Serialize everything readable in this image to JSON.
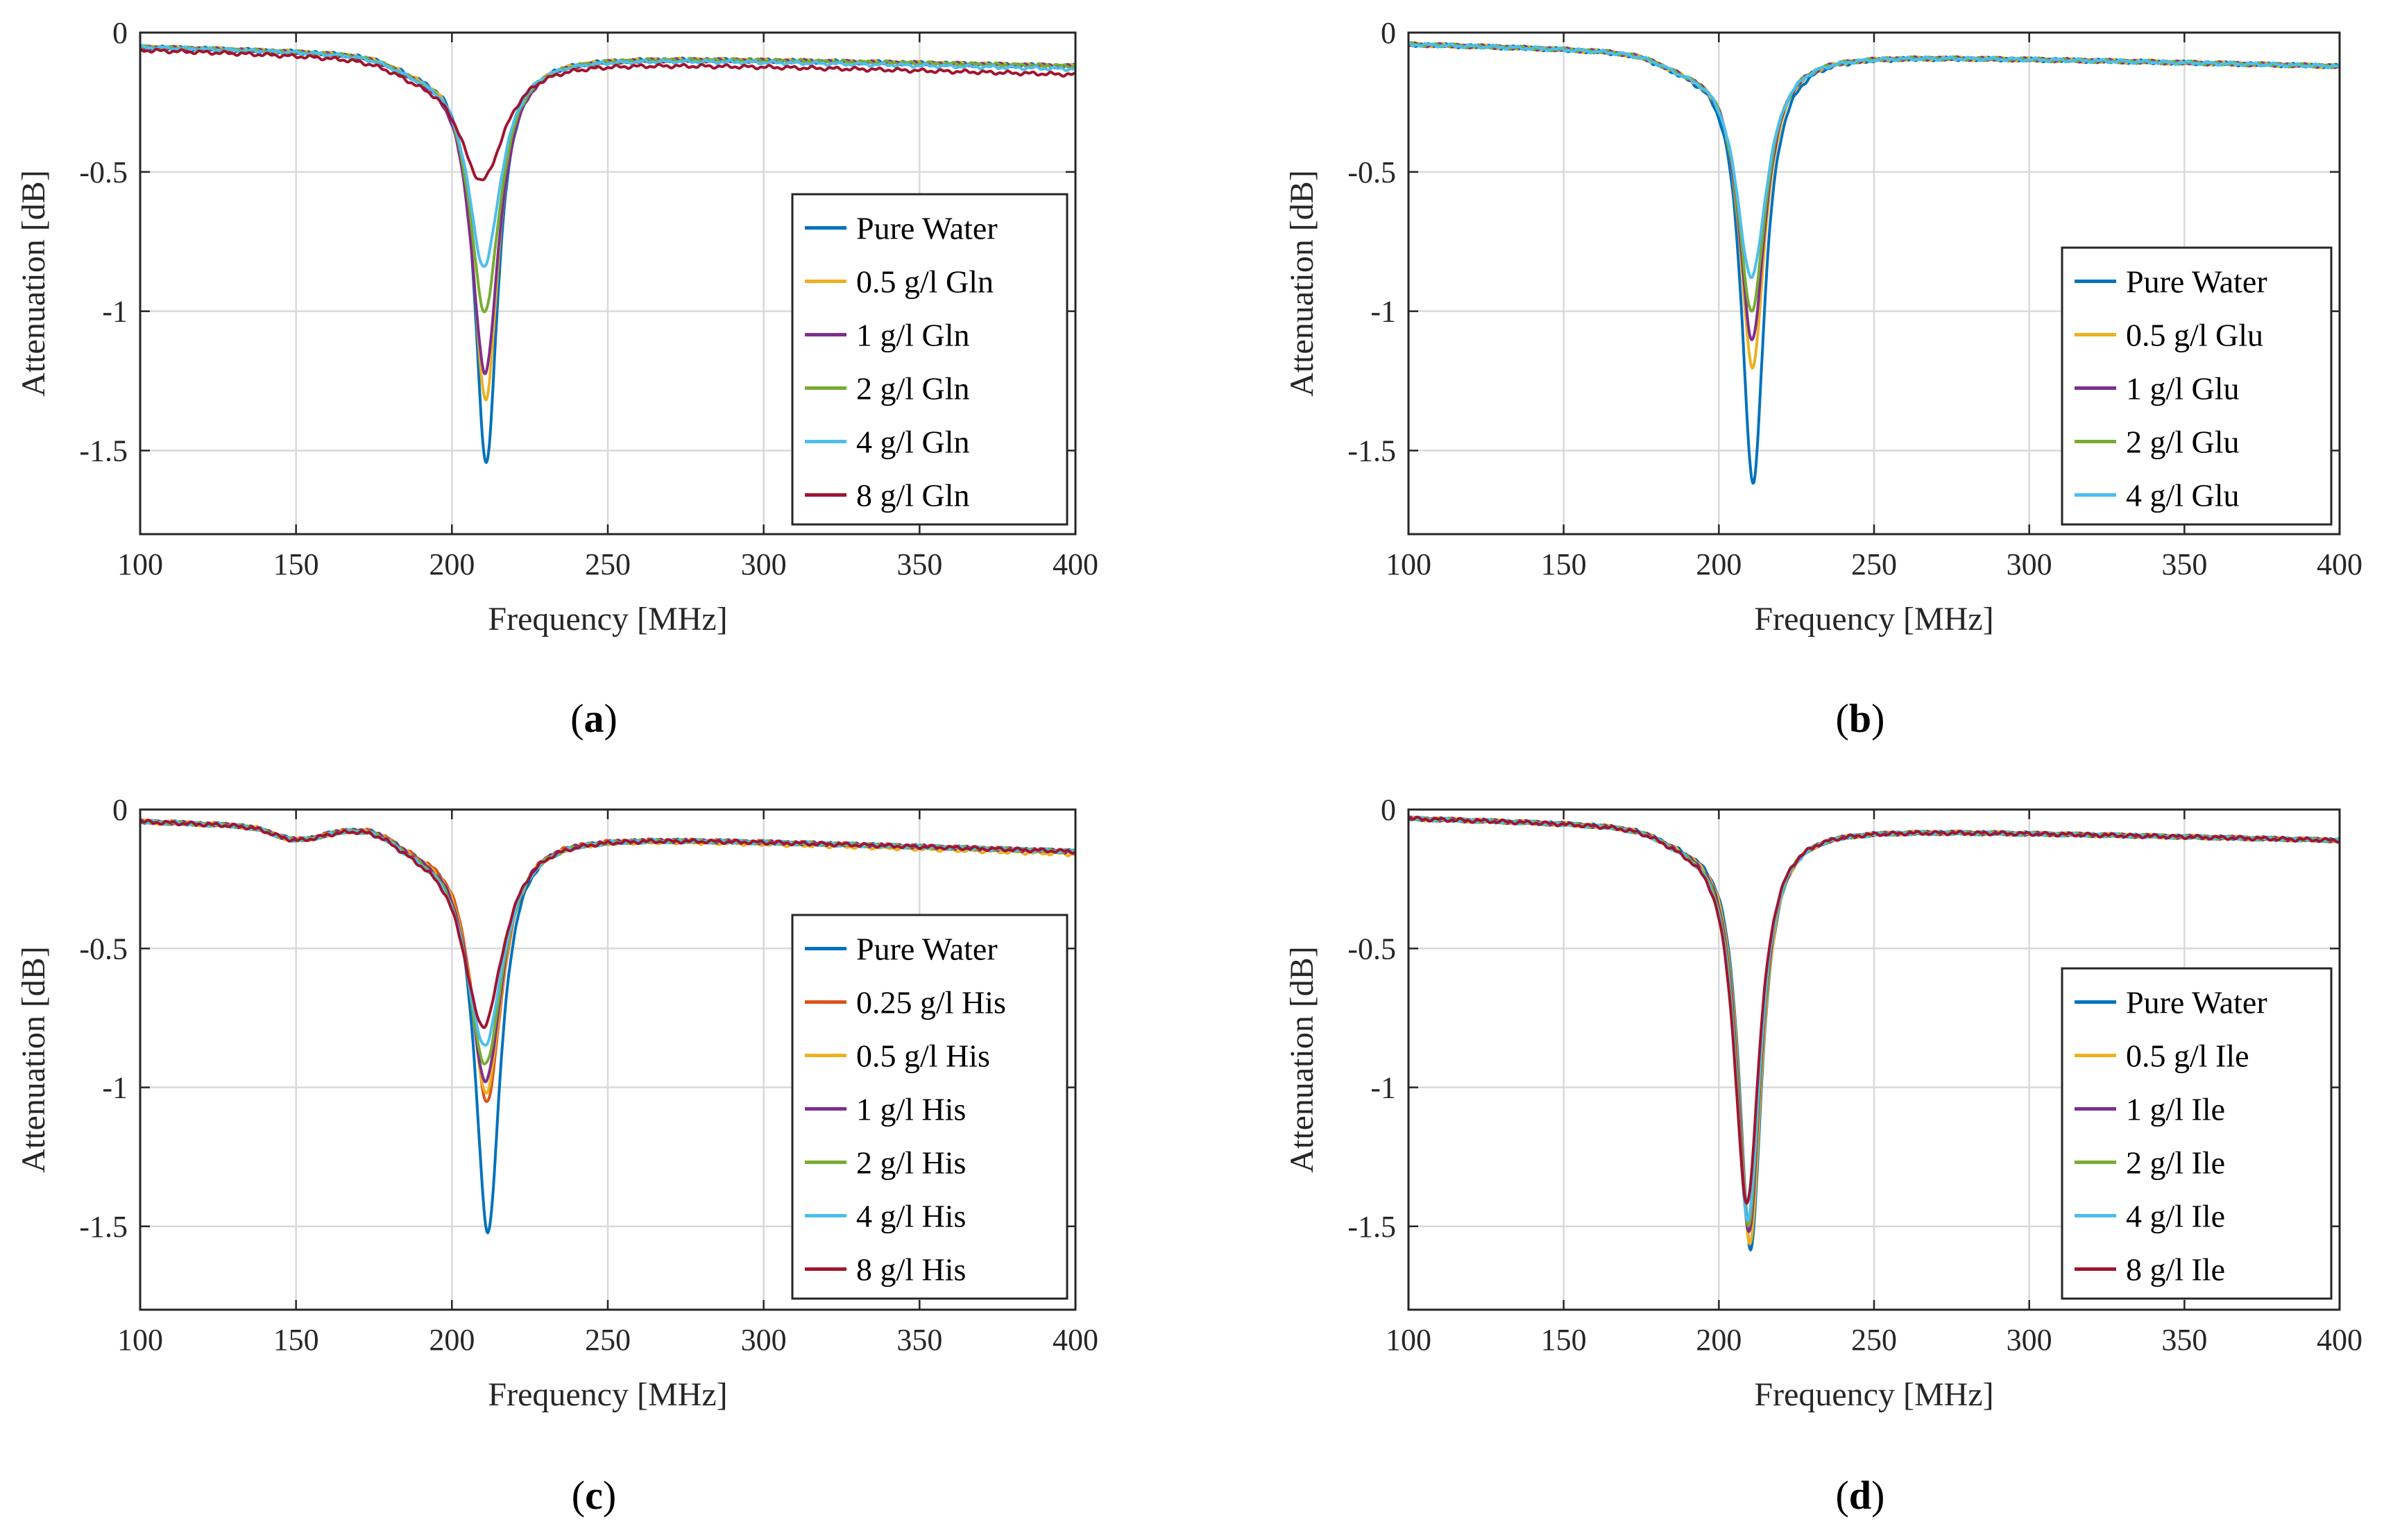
{
  "chart_data": [
    {
      "type": "line",
      "panel_label": "a",
      "xlabel": "Frequency [MHz]",
      "ylabel": "Attenuation [dB]",
      "xlim": [
        100,
        400
      ],
      "ylim": [
        -1.8,
        0
      ],
      "xticks": [
        100,
        150,
        200,
        250,
        300,
        350,
        400
      ],
      "yticks": [
        0,
        -0.5,
        -1,
        -1.5
      ],
      "ytick_labels": [
        "0",
        "-0.5",
        "-1",
        "-1.5"
      ],
      "grid": true,
      "legend_placement": "right",
      "series": [
        {
          "name": "Pure Water",
          "color": "#0072bd",
          "min_freq": 211,
          "min_value": -1.55,
          "base_start": -0.05,
          "base_end": -0.12,
          "width": 4.5
        },
        {
          "name": "0.5 g/l Gln",
          "color": "#edb120",
          "min_freq": 210.8,
          "min_value": -1.32,
          "base_start": -0.05,
          "base_end": -0.12,
          "width": 5
        },
        {
          "name": "1 g/l Gln",
          "color": "#7e2f8e",
          "min_freq": 210.6,
          "min_value": -1.22,
          "base_start": -0.05,
          "base_end": -0.12,
          "width": 5.5
        },
        {
          "name": "2 g/l Gln",
          "color": "#77ac30",
          "min_freq": 210.5,
          "min_value": -1.0,
          "base_start": -0.05,
          "base_end": -0.12,
          "width": 6
        },
        {
          "name": "4 g/l Gln",
          "color": "#4dbeee",
          "min_freq": 210.3,
          "min_value": -0.84,
          "base_start": -0.05,
          "base_end": -0.13,
          "width": 6.5
        },
        {
          "name": "8 g/l Gln",
          "color": "#a2142f",
          "min_freq": 209.5,
          "min_value": -0.53,
          "base_start": -0.06,
          "base_end": -0.15,
          "width": 9
        }
      ]
    },
    {
      "type": "line",
      "panel_label": "b",
      "xlabel": "Frequency [MHz]",
      "ylabel": "Attenuation [dB]",
      "xlim": [
        100,
        400
      ],
      "ylim": [
        -1.8,
        0
      ],
      "xticks": [
        100,
        150,
        200,
        250,
        300,
        350,
        400
      ],
      "yticks": [
        0,
        -0.5,
        -1,
        -1.5
      ],
      "ytick_labels": [
        "0",
        "-0.5",
        "-1",
        "-1.5"
      ],
      "grid": true,
      "legend_placement": "right",
      "series": [
        {
          "name": "Pure Water",
          "color": "#0072bd",
          "min_freq": 211,
          "min_value": -1.62,
          "base_start": -0.04,
          "base_end": -0.12,
          "width": 4.5
        },
        {
          "name": "0.5 g/l Glu",
          "color": "#edb120",
          "min_freq": 210.8,
          "min_value": -1.2,
          "base_start": -0.04,
          "base_end": -0.12,
          "width": 5
        },
        {
          "name": "1 g/l Glu",
          "color": "#7e2f8e",
          "min_freq": 210.7,
          "min_value": -1.1,
          "base_start": -0.04,
          "base_end": -0.12,
          "width": 5.2
        },
        {
          "name": "2 g/l Glu",
          "color": "#77ac30",
          "min_freq": 210.6,
          "min_value": -1.0,
          "base_start": -0.04,
          "base_end": -0.12,
          "width": 5.5
        },
        {
          "name": "4 g/l Glu",
          "color": "#4dbeee",
          "min_freq": 210.5,
          "min_value": -0.88,
          "base_start": -0.04,
          "base_end": -0.12,
          "width": 6
        }
      ]
    },
    {
      "type": "line",
      "panel_label": "c",
      "xlabel": "Frequency [MHz]",
      "ylabel": "Attenuation [dB]",
      "xlim": [
        100,
        400
      ],
      "ylim": [
        -1.8,
        0
      ],
      "xticks": [
        100,
        150,
        200,
        250,
        300,
        350,
        400
      ],
      "yticks": [
        0,
        -0.5,
        -1,
        -1.5
      ],
      "ytick_labels": [
        "0",
        "-0.5",
        "-1",
        "-1.5"
      ],
      "grid": true,
      "legend_placement": "right",
      "series": [
        {
          "name": "Pure Water",
          "color": "#0072bd",
          "min_freq": 211.5,
          "min_value": -1.52,
          "base_start": -0.04,
          "base_end": -0.15,
          "width": 5
        },
        {
          "name": "0.25 g/l His",
          "color": "#d95319",
          "min_freq": 211.2,
          "min_value": -1.05,
          "base_start": -0.04,
          "base_end": -0.15,
          "width": 6
        },
        {
          "name": "0.5 g/l His",
          "color": "#edb120",
          "min_freq": 211,
          "min_value": -1.02,
          "base_start": -0.04,
          "base_end": -0.16,
          "width": 6.2
        },
        {
          "name": "1 g/l His",
          "color": "#7e2f8e",
          "min_freq": 210.8,
          "min_value": -0.98,
          "base_start": -0.04,
          "base_end": -0.15,
          "width": 6.5
        },
        {
          "name": "2 g/l His",
          "color": "#77ac30",
          "min_freq": 210.6,
          "min_value": -0.92,
          "base_start": -0.04,
          "base_end": -0.15,
          "width": 7
        },
        {
          "name": "4 g/l His",
          "color": "#4dbeee",
          "min_freq": 210.4,
          "min_value": -0.85,
          "base_start": -0.04,
          "base_end": -0.15,
          "width": 7.5
        },
        {
          "name": "8 g/l His",
          "color": "#a2142f",
          "min_freq": 210,
          "min_value": -0.78,
          "base_start": -0.04,
          "base_end": -0.15,
          "width": 8
        }
      ]
    },
    {
      "type": "line",
      "panel_label": "d",
      "xlabel": "Frequency [MHz]",
      "ylabel": "Attenuation [dB]",
      "xlim": [
        100,
        400
      ],
      "ylim": [
        -1.8,
        0
      ],
      "xticks": [
        100,
        150,
        200,
        250,
        300,
        350,
        400
      ],
      "yticks": [
        0,
        -0.5,
        -1,
        -1.5
      ],
      "ytick_labels": [
        "0",
        "-0.5",
        "-1",
        "-1.5"
      ],
      "grid": true,
      "legend_placement": "right",
      "series": [
        {
          "name": "Pure Water",
          "color": "#0072bd",
          "min_freq": 210.2,
          "min_value": -1.58,
          "base_start": -0.03,
          "base_end": -0.11,
          "width": 4.5
        },
        {
          "name": "0.5 g/l Ile",
          "color": "#edb120",
          "min_freq": 210,
          "min_value": -1.56,
          "base_start": -0.03,
          "base_end": -0.11,
          "width": 4.6
        },
        {
          "name": "1 g/l Ile",
          "color": "#7e2f8e",
          "min_freq": 209.7,
          "min_value": -1.52,
          "base_start": -0.03,
          "base_end": -0.11,
          "width": 4.7
        },
        {
          "name": "2 g/l Ile",
          "color": "#77ac30",
          "min_freq": 209.5,
          "min_value": -1.5,
          "base_start": -0.03,
          "base_end": -0.11,
          "width": 4.8
        },
        {
          "name": "4 g/l Ile",
          "color": "#4dbeee",
          "min_freq": 209.3,
          "min_value": -1.48,
          "base_start": -0.03,
          "base_end": -0.11,
          "width": 4.9
        },
        {
          "name": "8 g/l Ile",
          "color": "#a2142f",
          "min_freq": 209,
          "min_value": -1.42,
          "base_start": -0.03,
          "base_end": -0.11,
          "width": 5
        }
      ]
    }
  ]
}
